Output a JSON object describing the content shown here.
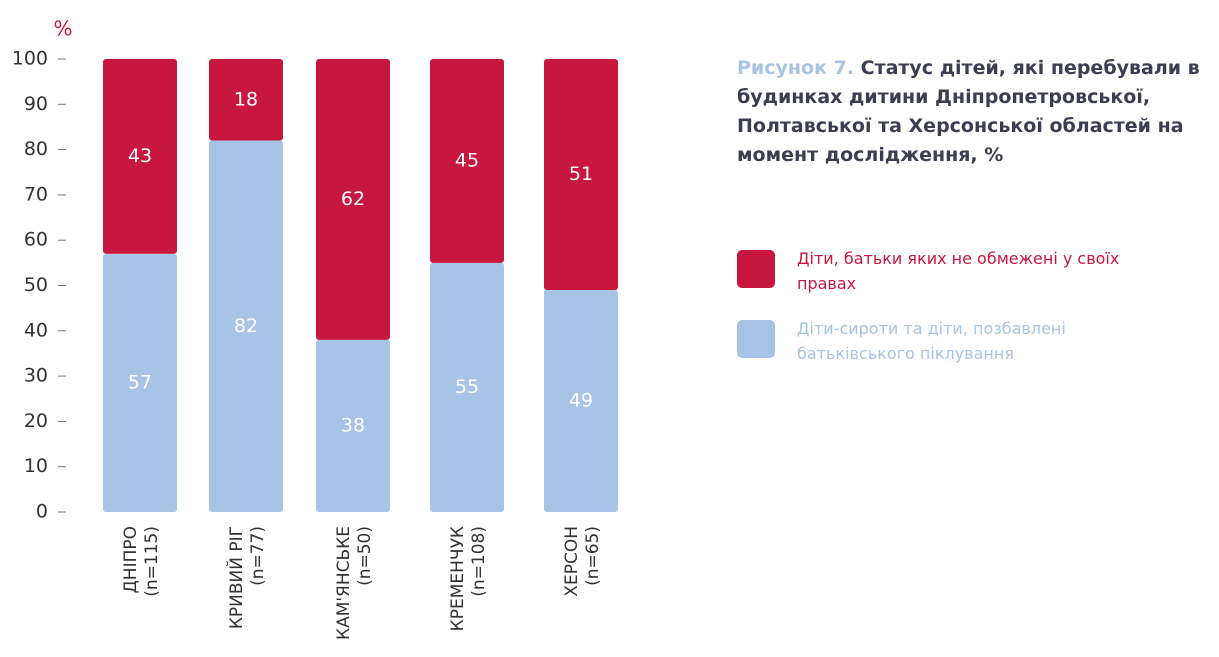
{
  "chart_data": {
    "type": "stacked_bar",
    "y_label": "%",
    "title_prefix": "Рисунок 7.",
    "title": "Статус дітей, які перебували в будинках дитини Дніпропетровської, Полтавської та Херсонської областей на момент дослідження, %",
    "categories": [
      "ДНІПРО (n=115)",
      "КРИВИЙ РІГ (n=77)",
      "КАМ'ЯНСЬКЕ (n=50)",
      "КРЕМЕНЧУК (n=108)",
      "ХЕРСОН (n=65)"
    ],
    "series": [
      {
        "name": "Діти, батьки яких не обмежені у своїх правах",
        "color": "#c8173f",
        "values": [
          43,
          18,
          62,
          45,
          51
        ]
      },
      {
        "name": "Діти-сироти та діти, позбавлені батьківського піклування",
        "color": "#a7c3e6",
        "values": [
          57,
          82,
          38,
          55,
          49
        ]
      }
    ],
    "ylim": [
      0,
      100
    ],
    "yticks": [
      0,
      10,
      20,
      30,
      40,
      50,
      60,
      70,
      80,
      90,
      100
    ],
    "grid": false
  }
}
